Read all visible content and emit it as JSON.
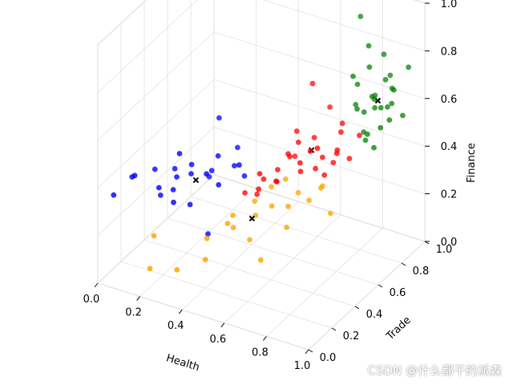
{
  "chart_data": {
    "type": "scatter",
    "subtype": "3d-scatter",
    "xlabel": "Health",
    "ylabel": "Trade",
    "zlabel": "Finance",
    "xlim": [
      0,
      1
    ],
    "ylim": [
      0,
      1
    ],
    "zlim": [
      0,
      1
    ],
    "xticks": [
      "0.0",
      "0.2",
      "0.4",
      "0.6",
      "0.8",
      "1.0"
    ],
    "yticks": [
      "0.0",
      "0.2",
      "0.4",
      "0.6",
      "0.8",
      "1.0"
    ],
    "zticks": [
      "0.0",
      "0.2",
      "0.4",
      "0.6",
      "0.8",
      "1.0"
    ],
    "grid": true,
    "colors": {
      "cluster_blue": "#0000ff",
      "cluster_orange": "#ffa500",
      "cluster_red": "#ff0000",
      "cluster_green": "#008000",
      "centroid": "#000000"
    },
    "series": [
      {
        "color": "#0000ff",
        "marker": "circle",
        "points": [
          [
            0.02,
            0.1,
            0.33
          ],
          [
            0.08,
            0.15,
            0.4
          ],
          [
            0.12,
            0.1,
            0.44
          ],
          [
            0.15,
            0.22,
            0.42
          ],
          [
            0.18,
            0.2,
            0.36
          ],
          [
            0.2,
            0.3,
            0.4
          ],
          [
            0.22,
            0.25,
            0.34
          ],
          [
            0.25,
            0.35,
            0.37
          ],
          [
            0.28,
            0.3,
            0.44
          ],
          [
            0.3,
            0.25,
            0.3
          ],
          [
            0.32,
            0.4,
            0.38
          ],
          [
            0.28,
            0.45,
            0.32
          ],
          [
            0.35,
            0.3,
            0.42
          ],
          [
            0.35,
            0.4,
            0.45
          ],
          [
            0.38,
            0.35,
            0.36
          ],
          [
            0.4,
            0.45,
            0.4
          ],
          [
            0.3,
            0.5,
            0.55
          ],
          [
            0.42,
            0.5,
            0.34
          ],
          [
            0.45,
            0.4,
            0.44
          ],
          [
            0.25,
            0.25,
            0.5
          ],
          [
            0.26,
            0.18,
            0.33
          ],
          [
            0.16,
            0.25,
            0.3
          ],
          [
            0.36,
            0.55,
            0.42
          ],
          [
            0.33,
            0.35,
            0.14
          ],
          [
            0.22,
            0.28,
            0.38
          ]
        ]
      },
      {
        "color": "#ffa500",
        "marker": "circle",
        "points": [
          [
            0.2,
            0.12,
            0.2
          ],
          [
            0.22,
            0.05,
            0.1
          ],
          [
            0.32,
            0.1,
            0.1
          ],
          [
            0.4,
            0.2,
            0.12
          ],
          [
            0.45,
            0.35,
            0.2
          ],
          [
            0.5,
            0.45,
            0.22
          ],
          [
            0.55,
            0.5,
            0.25
          ],
          [
            0.6,
            0.55,
            0.24
          ],
          [
            0.62,
            0.6,
            0.28
          ],
          [
            0.58,
            0.35,
            0.1
          ],
          [
            0.38,
            0.25,
            0.18
          ],
          [
            0.52,
            0.55,
            0.3
          ],
          [
            0.66,
            0.62,
            0.25
          ],
          [
            0.7,
            0.65,
            0.3
          ],
          [
            0.48,
            0.48,
            0.26
          ],
          [
            0.45,
            0.3,
            0.24
          ],
          [
            0.42,
            0.4,
            0.22
          ],
          [
            0.56,
            0.6,
            0.32
          ],
          [
            0.68,
            0.7,
            0.28
          ],
          [
            0.74,
            0.66,
            0.2
          ],
          [
            0.5,
            0.4,
            0.14
          ],
          [
            0.62,
            0.5,
            0.18
          ]
        ]
      },
      {
        "color": "#ff0000",
        "marker": "circle",
        "points": [
          [
            0.45,
            0.45,
            0.3
          ],
          [
            0.5,
            0.52,
            0.34
          ],
          [
            0.52,
            0.45,
            0.4
          ],
          [
            0.55,
            0.55,
            0.38
          ],
          [
            0.58,
            0.6,
            0.42
          ],
          [
            0.6,
            0.55,
            0.46
          ],
          [
            0.62,
            0.62,
            0.36
          ],
          [
            0.65,
            0.65,
            0.44
          ],
          [
            0.68,
            0.7,
            0.4
          ],
          [
            0.7,
            0.62,
            0.48
          ],
          [
            0.72,
            0.72,
            0.38
          ],
          [
            0.75,
            0.7,
            0.45
          ],
          [
            0.78,
            0.75,
            0.4
          ],
          [
            0.66,
            0.8,
            0.56
          ],
          [
            0.6,
            0.76,
            0.66
          ],
          [
            0.73,
            0.78,
            0.52
          ],
          [
            0.48,
            0.5,
            0.28
          ],
          [
            0.53,
            0.58,
            0.31
          ],
          [
            0.57,
            0.5,
            0.36
          ],
          [
            0.64,
            0.58,
            0.42
          ],
          [
            0.7,
            0.68,
            0.34
          ],
          [
            0.77,
            0.66,
            0.46
          ],
          [
            0.8,
            0.8,
            0.48
          ],
          [
            0.58,
            0.66,
            0.5
          ],
          [
            0.63,
            0.72,
            0.46
          ],
          [
            0.68,
            0.64,
            0.38
          ],
          [
            0.74,
            0.75,
            0.5
          ],
          [
            0.52,
            0.44,
            0.34
          ],
          [
            0.61,
            0.62,
            0.48
          ],
          [
            0.56,
            0.68,
            0.38
          ]
        ]
      },
      {
        "color": "#008000",
        "marker": "circle",
        "points": [
          [
            0.75,
            0.9,
            0.92
          ],
          [
            0.8,
            0.88,
            0.82
          ],
          [
            0.82,
            0.85,
            0.75
          ],
          [
            0.85,
            0.92,
            0.78
          ],
          [
            0.88,
            0.88,
            0.7
          ],
          [
            0.78,
            0.82,
            0.68
          ],
          [
            0.86,
            0.8,
            0.66
          ],
          [
            0.9,
            0.9,
            0.66
          ],
          [
            0.92,
            0.86,
            0.62
          ],
          [
            0.88,
            0.84,
            0.6
          ],
          [
            0.84,
            0.86,
            0.58
          ],
          [
            0.8,
            0.78,
            0.6
          ],
          [
            0.95,
            0.9,
            0.56
          ],
          [
            0.9,
            0.8,
            0.54
          ],
          [
            0.86,
            0.76,
            0.52
          ],
          [
            0.82,
            0.8,
            0.5
          ],
          [
            0.92,
            0.84,
            0.56
          ],
          [
            0.86,
            0.82,
            0.64
          ],
          [
            0.8,
            0.84,
            0.56
          ],
          [
            0.84,
            0.78,
            0.48
          ],
          [
            0.9,
            0.86,
            0.6
          ],
          [
            0.77,
            0.8,
            0.72
          ],
          [
            0.95,
            0.95,
            0.74
          ],
          [
            0.88,
            0.92,
            0.7
          ],
          [
            0.83,
            0.88,
            0.62
          ],
          [
            0.88,
            0.78,
            0.46
          ],
          [
            0.76,
            0.84,
            0.58
          ],
          [
            0.93,
            0.86,
            0.68
          ]
        ]
      },
      {
        "color": "#000000",
        "marker": "x",
        "points": [
          [
            0.3,
            0.3,
            0.38
          ],
          [
            0.5,
            0.42,
            0.22
          ],
          [
            0.65,
            0.66,
            0.44
          ],
          [
            0.86,
            0.85,
            0.62
          ]
        ]
      }
    ],
    "view": {
      "elevation": 30,
      "azimuth": -60
    }
  },
  "watermark": {
    "text": "CSDN @什么都干的派森"
  }
}
